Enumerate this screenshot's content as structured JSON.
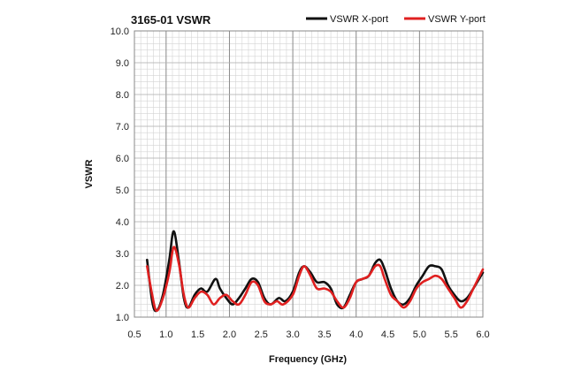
{
  "chart_data": {
    "type": "line",
    "title": "3165-01 VSWR",
    "xlabel": "Frequency (GHz)",
    "ylabel": "VSWR",
    "xlim": [
      0.5,
      6.0
    ],
    "ylim": [
      1.0,
      10.0
    ],
    "x_ticks": [
      "0.5",
      "1.0",
      "1.5",
      "2.0",
      "2.5",
      "3.0",
      "3.5",
      "4.0",
      "4.5",
      "5.0",
      "5.5",
      "6.0"
    ],
    "y_ticks": [
      "1.0",
      "2.0",
      "3.0",
      "4.0",
      "5.0",
      "6.0",
      "7.0",
      "8.0",
      "9.0",
      "10.0"
    ],
    "legend_position": "top-right",
    "grid": true,
    "series": [
      {
        "name": "VSWR X-port",
        "color": "#111111",
        "points": [
          [
            0.7,
            2.8
          ],
          [
            0.78,
            1.5
          ],
          [
            0.85,
            1.2
          ],
          [
            0.95,
            1.7
          ],
          [
            1.05,
            2.8
          ],
          [
            1.12,
            3.7
          ],
          [
            1.2,
            2.8
          ],
          [
            1.28,
            1.6
          ],
          [
            1.35,
            1.3
          ],
          [
            1.45,
            1.7
          ],
          [
            1.55,
            1.9
          ],
          [
            1.65,
            1.8
          ],
          [
            1.78,
            2.2
          ],
          [
            1.85,
            1.9
          ],
          [
            1.95,
            1.6
          ],
          [
            2.05,
            1.4
          ],
          [
            2.15,
            1.6
          ],
          [
            2.25,
            1.9
          ],
          [
            2.35,
            2.2
          ],
          [
            2.45,
            2.1
          ],
          [
            2.55,
            1.6
          ],
          [
            2.65,
            1.4
          ],
          [
            2.78,
            1.6
          ],
          [
            2.88,
            1.5
          ],
          [
            3.0,
            1.8
          ],
          [
            3.1,
            2.4
          ],
          [
            3.18,
            2.6
          ],
          [
            3.28,
            2.4
          ],
          [
            3.38,
            2.1
          ],
          [
            3.5,
            2.1
          ],
          [
            3.6,
            1.9
          ],
          [
            3.7,
            1.4
          ],
          [
            3.8,
            1.3
          ],
          [
            3.9,
            1.7
          ],
          [
            4.0,
            2.1
          ],
          [
            4.1,
            2.2
          ],
          [
            4.2,
            2.3
          ],
          [
            4.3,
            2.7
          ],
          [
            4.38,
            2.8
          ],
          [
            4.45,
            2.5
          ],
          [
            4.55,
            1.9
          ],
          [
            4.65,
            1.5
          ],
          [
            4.75,
            1.4
          ],
          [
            4.85,
            1.6
          ],
          [
            4.95,
            2.0
          ],
          [
            5.05,
            2.3
          ],
          [
            5.15,
            2.6
          ],
          [
            5.25,
            2.6
          ],
          [
            5.35,
            2.5
          ],
          [
            5.45,
            2.0
          ],
          [
            5.55,
            1.7
          ],
          [
            5.65,
            1.5
          ],
          [
            5.75,
            1.6
          ],
          [
            5.85,
            1.9
          ],
          [
            6.0,
            2.4
          ]
        ]
      },
      {
        "name": "VSWR Y-port",
        "color": "#e02020",
        "points": [
          [
            0.7,
            2.6
          ],
          [
            0.78,
            1.7
          ],
          [
            0.85,
            1.2
          ],
          [
            0.95,
            1.6
          ],
          [
            1.05,
            2.4
          ],
          [
            1.12,
            3.2
          ],
          [
            1.2,
            2.7
          ],
          [
            1.28,
            1.7
          ],
          [
            1.35,
            1.3
          ],
          [
            1.45,
            1.6
          ],
          [
            1.55,
            1.8
          ],
          [
            1.65,
            1.7
          ],
          [
            1.75,
            1.4
          ],
          [
            1.85,
            1.6
          ],
          [
            1.95,
            1.7
          ],
          [
            2.05,
            1.5
          ],
          [
            2.15,
            1.4
          ],
          [
            2.25,
            1.7
          ],
          [
            2.35,
            2.1
          ],
          [
            2.45,
            2.0
          ],
          [
            2.55,
            1.5
          ],
          [
            2.65,
            1.4
          ],
          [
            2.75,
            1.5
          ],
          [
            2.85,
            1.4
          ],
          [
            3.0,
            1.7
          ],
          [
            3.1,
            2.3
          ],
          [
            3.18,
            2.6
          ],
          [
            3.28,
            2.3
          ],
          [
            3.38,
            1.9
          ],
          [
            3.5,
            1.9
          ],
          [
            3.6,
            1.8
          ],
          [
            3.7,
            1.5
          ],
          [
            3.8,
            1.3
          ],
          [
            3.9,
            1.6
          ],
          [
            4.0,
            2.1
          ],
          [
            4.1,
            2.2
          ],
          [
            4.2,
            2.3
          ],
          [
            4.3,
            2.6
          ],
          [
            4.38,
            2.6
          ],
          [
            4.45,
            2.2
          ],
          [
            4.55,
            1.7
          ],
          [
            4.65,
            1.5
          ],
          [
            4.75,
            1.3
          ],
          [
            4.85,
            1.5
          ],
          [
            4.95,
            1.9
          ],
          [
            5.05,
            2.1
          ],
          [
            5.15,
            2.2
          ],
          [
            5.25,
            2.3
          ],
          [
            5.35,
            2.2
          ],
          [
            5.45,
            1.9
          ],
          [
            5.55,
            1.6
          ],
          [
            5.65,
            1.3
          ],
          [
            5.75,
            1.5
          ],
          [
            5.85,
            1.9
          ],
          [
            6.0,
            2.5
          ]
        ]
      }
    ]
  }
}
